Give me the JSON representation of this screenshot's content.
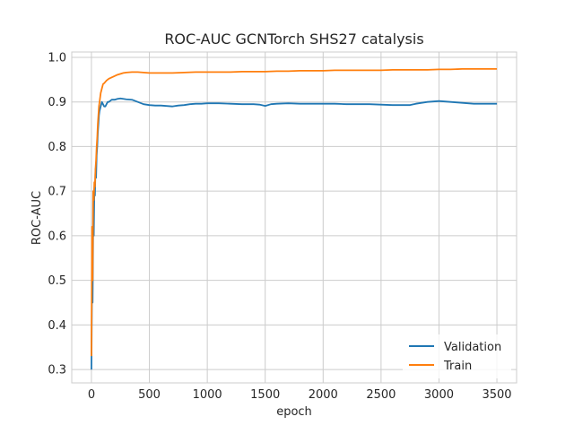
{
  "chart_data": {
    "type": "line",
    "title": "ROC-AUC GCNTorch SHS27 catalysis",
    "xlabel": "epoch",
    "ylabel": "ROC-AUC",
    "xlim": [
      -170,
      3670
    ],
    "ylim": [
      0.27,
      1.012
    ],
    "x_ticks": [
      0,
      500,
      1000,
      1500,
      2000,
      2500,
      3000,
      3500
    ],
    "x_tick_labels": [
      "0",
      "500",
      "1000",
      "1500",
      "2000",
      "2500",
      "3000",
      "3500"
    ],
    "y_ticks": [
      0.3,
      0.4,
      0.5,
      0.6,
      0.7,
      0.8,
      0.9,
      1.0
    ],
    "y_tick_labels": [
      "0.3",
      "0.4",
      "0.5",
      "0.6",
      "0.7",
      "0.8",
      "0.9",
      "1.0"
    ],
    "grid": true,
    "legend_position": "lower-right",
    "series": [
      {
        "name": "Validation",
        "color": "#1f77b4",
        "x": [
          0,
          5,
          10,
          15,
          20,
          25,
          30,
          35,
          40,
          45,
          50,
          55,
          60,
          65,
          70,
          80,
          90,
          100,
          110,
          120,
          130,
          140,
          150,
          175,
          200,
          225,
          250,
          275,
          300,
          350,
          400,
          450,
          500,
          550,
          600,
          650,
          700,
          750,
          800,
          850,
          900,
          950,
          1000,
          1100,
          1200,
          1300,
          1400,
          1450,
          1500,
          1550,
          1600,
          1700,
          1800,
          1900,
          2000,
          2100,
          2200,
          2300,
          2400,
          2500,
          2600,
          2700,
          2750,
          2800,
          2850,
          2900,
          2950,
          3000,
          3050,
          3100,
          3150,
          3200,
          3250,
          3300,
          3350,
          3400,
          3450,
          3500
        ],
        "y": [
          0.3,
          0.5,
          0.45,
          0.62,
          0.6,
          0.7,
          0.69,
          0.75,
          0.73,
          0.78,
          0.8,
          0.83,
          0.85,
          0.87,
          0.88,
          0.89,
          0.9,
          0.895,
          0.89,
          0.89,
          0.895,
          0.9,
          0.9,
          0.905,
          0.905,
          0.907,
          0.908,
          0.907,
          0.906,
          0.905,
          0.9,
          0.895,
          0.893,
          0.892,
          0.892,
          0.891,
          0.89,
          0.892,
          0.893,
          0.895,
          0.896,
          0.896,
          0.897,
          0.897,
          0.896,
          0.895,
          0.895,
          0.894,
          0.891,
          0.895,
          0.896,
          0.897,
          0.896,
          0.896,
          0.896,
          0.896,
          0.895,
          0.895,
          0.895,
          0.894,
          0.893,
          0.893,
          0.893,
          0.896,
          0.898,
          0.9,
          0.901,
          0.902,
          0.901,
          0.9,
          0.899,
          0.898,
          0.897,
          0.896,
          0.896,
          0.896,
          0.896,
          0.896
        ]
      },
      {
        "name": "Train",
        "color": "#ff7f0e",
        "x": [
          0,
          5,
          10,
          15,
          20,
          25,
          30,
          35,
          40,
          45,
          50,
          55,
          60,
          65,
          70,
          80,
          90,
          100,
          110,
          120,
          130,
          140,
          150,
          175,
          200,
          225,
          250,
          275,
          300,
          350,
          400,
          450,
          500,
          600,
          700,
          800,
          900,
          1000,
          1100,
          1200,
          1300,
          1400,
          1500,
          1600,
          1700,
          1800,
          1900,
          2000,
          2100,
          2200,
          2300,
          2400,
          2500,
          2600,
          2700,
          2800,
          2900,
          3000,
          3100,
          3200,
          3300,
          3400,
          3500
        ],
        "y": [
          0.33,
          0.62,
          0.5,
          0.7,
          0.68,
          0.72,
          0.71,
          0.75,
          0.77,
          0.8,
          0.82,
          0.85,
          0.87,
          0.89,
          0.9,
          0.92,
          0.93,
          0.94,
          0.942,
          0.945,
          0.948,
          0.95,
          0.952,
          0.955,
          0.958,
          0.961,
          0.963,
          0.965,
          0.966,
          0.967,
          0.967,
          0.966,
          0.965,
          0.965,
          0.965,
          0.966,
          0.967,
          0.967,
          0.967,
          0.967,
          0.968,
          0.968,
          0.968,
          0.969,
          0.969,
          0.97,
          0.97,
          0.97,
          0.971,
          0.971,
          0.971,
          0.971,
          0.971,
          0.972,
          0.972,
          0.972,
          0.972,
          0.973,
          0.973,
          0.974,
          0.974,
          0.974,
          0.974
        ]
      }
    ]
  }
}
